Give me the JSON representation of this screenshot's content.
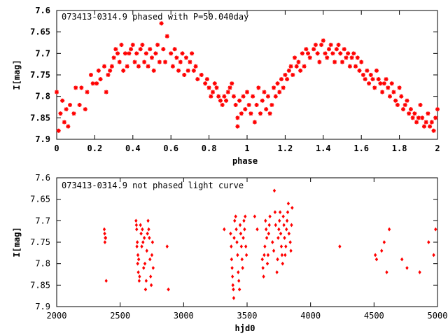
{
  "chart_data": [
    {
      "type": "scatter",
      "title": "073413-0314.9 phased with P=50.040day",
      "xlabel": "phase",
      "ylabel": "I[mag]",
      "xlim": [
        0,
        2
      ],
      "ylim": [
        7.9,
        7.6
      ],
      "y_inverted": true,
      "grid": false,
      "marker_color": "#ff0000",
      "marker_shape": "star",
      "x_ticks": [
        "0",
        "0.2",
        "0.4",
        "0.6",
        "0.8",
        "1",
        "1.2",
        "1.4",
        "1.6",
        "1.8",
        "2"
      ],
      "y_ticks": [
        "7.6",
        "7.65",
        "7.7",
        "7.75",
        "7.8",
        "7.85",
        "7.9"
      ],
      "points": [
        [
          0.0,
          7.79
        ],
        [
          0.01,
          7.88
        ],
        [
          0.02,
          7.84
        ],
        [
          0.03,
          7.81
        ],
        [
          0.04,
          7.86
        ],
        [
          0.05,
          7.83
        ],
        [
          0.06,
          7.87
        ],
        [
          0.07,
          7.82
        ],
        [
          0.09,
          7.84
        ],
        [
          0.1,
          7.78
        ],
        [
          0.12,
          7.82
        ],
        [
          0.13,
          7.78
        ],
        [
          0.15,
          7.83
        ],
        [
          0.16,
          7.79
        ],
        [
          0.18,
          7.75
        ],
        [
          0.19,
          7.77
        ],
        [
          0.21,
          7.77
        ],
        [
          0.22,
          7.74
        ],
        [
          0.23,
          7.76
        ],
        [
          0.25,
          7.73
        ],
        [
          0.26,
          7.79
        ],
        [
          0.27,
          7.75
        ],
        [
          0.28,
          7.74
        ],
        [
          0.29,
          7.73
        ],
        [
          0.3,
          7.71
        ],
        [
          0.31,
          7.69
        ],
        [
          0.32,
          7.7
        ],
        [
          0.33,
          7.72
        ],
        [
          0.34,
          7.68
        ],
        [
          0.35,
          7.74
        ],
        [
          0.36,
          7.7
        ],
        [
          0.37,
          7.73
        ],
        [
          0.38,
          7.7
        ],
        [
          0.39,
          7.69
        ],
        [
          0.4,
          7.68
        ],
        [
          0.41,
          7.72
        ],
        [
          0.42,
          7.7
        ],
        [
          0.43,
          7.73
        ],
        [
          0.44,
          7.69
        ],
        [
          0.45,
          7.68
        ],
        [
          0.46,
          7.72
        ],
        [
          0.47,
          7.7
        ],
        [
          0.48,
          7.73
        ],
        [
          0.49,
          7.69
        ],
        [
          0.5,
          7.71
        ],
        [
          0.51,
          7.74
        ],
        [
          0.52,
          7.7
        ],
        [
          0.53,
          7.68
        ],
        [
          0.54,
          7.72
        ],
        [
          0.55,
          7.63
        ],
        [
          0.56,
          7.69
        ],
        [
          0.57,
          7.72
        ],
        [
          0.58,
          7.66
        ],
        [
          0.6,
          7.7
        ],
        [
          0.61,
          7.73
        ],
        [
          0.62,
          7.69
        ],
        [
          0.63,
          7.71
        ],
        [
          0.64,
          7.74
        ],
        [
          0.65,
          7.72
        ],
        [
          0.66,
          7.7
        ],
        [
          0.67,
          7.75
        ],
        [
          0.68,
          7.71
        ],
        [
          0.69,
          7.74
        ],
        [
          0.7,
          7.72
        ],
        [
          0.71,
          7.7
        ],
        [
          0.72,
          7.74
        ],
        [
          0.73,
          7.73
        ],
        [
          0.74,
          7.76
        ],
        [
          0.76,
          7.75
        ],
        [
          0.78,
          7.77
        ],
        [
          0.79,
          7.76
        ],
        [
          0.8,
          7.78
        ],
        [
          0.81,
          7.8
        ],
        [
          0.82,
          7.79
        ],
        [
          0.83,
          7.77
        ],
        [
          0.84,
          7.78
        ],
        [
          0.85,
          7.8
        ],
        [
          0.86,
          7.81
        ],
        [
          0.87,
          7.82
        ],
        [
          0.88,
          7.8
        ],
        [
          0.89,
          7.81
        ],
        [
          0.9,
          7.79
        ],
        [
          0.91,
          7.78
        ],
        [
          0.92,
          7.77
        ],
        [
          0.93,
          7.8
        ],
        [
          0.94,
          7.82
        ],
        [
          0.95,
          7.85
        ],
        [
          0.95,
          7.87
        ],
        [
          0.96,
          7.81
        ],
        [
          0.97,
          7.84
        ],
        [
          0.98,
          7.8
        ],
        [
          0.99,
          7.83
        ],
        [
          1.0,
          7.79
        ],
        [
          1.01,
          7.82
        ],
        [
          1.02,
          7.84
        ],
        [
          1.03,
          7.8
        ],
        [
          1.04,
          7.86
        ],
        [
          1.05,
          7.82
        ],
        [
          1.06,
          7.78
        ],
        [
          1.07,
          7.84
        ],
        [
          1.08,
          7.81
        ],
        [
          1.09,
          7.79
        ],
        [
          1.1,
          7.83
        ],
        [
          1.11,
          7.8
        ],
        [
          1.12,
          7.84
        ],
        [
          1.13,
          7.82
        ],
        [
          1.14,
          7.78
        ],
        [
          1.15,
          7.8
        ],
        [
          1.16,
          7.77
        ],
        [
          1.17,
          7.79
        ],
        [
          1.18,
          7.76
        ],
        [
          1.19,
          7.78
        ],
        [
          1.2,
          7.75
        ],
        [
          1.21,
          7.76
        ],
        [
          1.22,
          7.74
        ],
        [
          1.23,
          7.73
        ],
        [
          1.24,
          7.75
        ],
        [
          1.25,
          7.71
        ],
        [
          1.26,
          7.73
        ],
        [
          1.27,
          7.72
        ],
        [
          1.28,
          7.74
        ],
        [
          1.29,
          7.7
        ],
        [
          1.3,
          7.73
        ],
        [
          1.31,
          7.69
        ],
        [
          1.32,
          7.7
        ],
        [
          1.33,
          7.71
        ],
        [
          1.35,
          7.69
        ],
        [
          1.36,
          7.68
        ],
        [
          1.37,
          7.7
        ],
        [
          1.38,
          7.72
        ],
        [
          1.39,
          7.68
        ],
        [
          1.4,
          7.67
        ],
        [
          1.41,
          7.7
        ],
        [
          1.42,
          7.71
        ],
        [
          1.43,
          7.69
        ],
        [
          1.44,
          7.68
        ],
        [
          1.45,
          7.7
        ],
        [
          1.46,
          7.72
        ],
        [
          1.47,
          7.69
        ],
        [
          1.48,
          7.68
        ],
        [
          1.49,
          7.7
        ],
        [
          1.5,
          7.72
        ],
        [
          1.51,
          7.69
        ],
        [
          1.52,
          7.71
        ],
        [
          1.53,
          7.7
        ],
        [
          1.54,
          7.73
        ],
        [
          1.55,
          7.71
        ],
        [
          1.56,
          7.7
        ],
        [
          1.57,
          7.73
        ],
        [
          1.58,
          7.71
        ],
        [
          1.59,
          7.74
        ],
        [
          1.6,
          7.72
        ],
        [
          1.61,
          7.75
        ],
        [
          1.62,
          7.76
        ],
        [
          1.63,
          7.74
        ],
        [
          1.64,
          7.77
        ],
        [
          1.65,
          7.75
        ],
        [
          1.66,
          7.76
        ],
        [
          1.67,
          7.78
        ],
        [
          1.68,
          7.74
        ],
        [
          1.69,
          7.76
        ],
        [
          1.7,
          7.77
        ],
        [
          1.71,
          7.79
        ],
        [
          1.72,
          7.77
        ],
        [
          1.73,
          7.76
        ],
        [
          1.74,
          7.78
        ],
        [
          1.75,
          7.8
        ],
        [
          1.76,
          7.77
        ],
        [
          1.77,
          7.79
        ],
        [
          1.78,
          7.81
        ],
        [
          1.79,
          7.82
        ],
        [
          1.8,
          7.78
        ],
        [
          1.81,
          7.8
        ],
        [
          1.82,
          7.83
        ],
        [
          1.83,
          7.82
        ],
        [
          1.84,
          7.81
        ],
        [
          1.85,
          7.84
        ],
        [
          1.86,
          7.83
        ],
        [
          1.87,
          7.85
        ],
        [
          1.88,
          7.84
        ],
        [
          1.89,
          7.86
        ],
        [
          1.9,
          7.85
        ],
        [
          1.91,
          7.82
        ],
        [
          1.92,
          7.85
        ],
        [
          1.93,
          7.87
        ],
        [
          1.94,
          7.86
        ],
        [
          1.95,
          7.84
        ],
        [
          1.96,
          7.87
        ],
        [
          1.97,
          7.86
        ],
        [
          1.98,
          7.88
        ],
        [
          1.99,
          7.85
        ],
        [
          2.0,
          7.83
        ]
      ]
    },
    {
      "type": "scatter",
      "title": "073413-0314.9 not phased light curve",
      "xlabel": "hjd0",
      "ylabel": "I[mag]",
      "xlim": [
        2000,
        5000
      ],
      "ylim": [
        7.9,
        7.6
      ],
      "y_inverted": true,
      "grid": false,
      "marker_color": "#ff0000",
      "marker_shape": "diamond",
      "x_ticks": [
        "2000",
        "2500",
        "3000",
        "3500",
        "4000",
        "4500",
        "5000"
      ],
      "y_ticks": [
        "7.6",
        "7.65",
        "7.7",
        "7.75",
        "7.8",
        "7.85",
        "7.9"
      ],
      "points": [
        [
          2375,
          7.72
        ],
        [
          2378,
          7.73
        ],
        [
          2380,
          7.75
        ],
        [
          2383,
          7.74
        ],
        [
          2386,
          7.74
        ],
        [
          2390,
          7.84
        ],
        [
          2625,
          7.7
        ],
        [
          2628,
          7.71
        ],
        [
          2630,
          7.72
        ],
        [
          2632,
          7.76
        ],
        [
          2635,
          7.75
        ],
        [
          2638,
          7.8
        ],
        [
          2640,
          7.78
        ],
        [
          2643,
          7.82
        ],
        [
          2646,
          7.79
        ],
        [
          2650,
          7.84
        ],
        [
          2653,
          7.83
        ],
        [
          2660,
          7.71
        ],
        [
          2665,
          7.73
        ],
        [
          2670,
          7.76
        ],
        [
          2675,
          7.72
        ],
        [
          2680,
          7.75
        ],
        [
          2685,
          7.81
        ],
        [
          2690,
          7.74
        ],
        [
          2695,
          7.8
        ],
        [
          2700,
          7.86
        ],
        [
          2705,
          7.84
        ],
        [
          2710,
          7.77
        ],
        [
          2715,
          7.73
        ],
        [
          2720,
          7.7
        ],
        [
          2725,
          7.72
        ],
        [
          2730,
          7.74
        ],
        [
          2735,
          7.79
        ],
        [
          2740,
          7.83
        ],
        [
          2745,
          7.85
        ],
        [
          2750,
          7.78
        ],
        [
          2755,
          7.75
        ],
        [
          2760,
          7.81
        ],
        [
          2870,
          7.76
        ],
        [
          2880,
          7.86
        ],
        [
          3320,
          7.72
        ],
        [
          3370,
          7.73
        ],
        [
          3375,
          7.76
        ],
        [
          3378,
          7.79
        ],
        [
          3382,
          7.81
        ],
        [
          3385,
          7.83
        ],
        [
          3388,
          7.85
        ],
        [
          3392,
          7.86
        ],
        [
          3395,
          7.88
        ],
        [
          3398,
          7.74
        ],
        [
          3402,
          7.7
        ],
        [
          3410,
          7.69
        ],
        [
          3415,
          7.72
        ],
        [
          3420,
          7.75
        ],
        [
          3425,
          7.78
        ],
        [
          3430,
          7.82
        ],
        [
          3435,
          7.84
        ],
        [
          3440,
          7.86
        ],
        [
          3445,
          7.71
        ],
        [
          3450,
          7.73
        ],
        [
          3455,
          7.76
        ],
        [
          3460,
          7.79
        ],
        [
          3465,
          7.81
        ],
        [
          3470,
          7.74
        ],
        [
          3475,
          7.7
        ],
        [
          3480,
          7.72
        ],
        [
          3485,
          7.69
        ],
        [
          3490,
          7.76
        ],
        [
          3495,
          7.78
        ],
        [
          3560,
          7.69
        ],
        [
          3580,
          7.72
        ],
        [
          3620,
          7.79
        ],
        [
          3625,
          7.81
        ],
        [
          3630,
          7.83
        ],
        [
          3635,
          7.78
        ],
        [
          3640,
          7.76
        ],
        [
          3645,
          7.7
        ],
        [
          3650,
          7.72
        ],
        [
          3655,
          7.74
        ],
        [
          3660,
          7.8
        ],
        [
          3665,
          7.78
        ],
        [
          3670,
          7.73
        ],
        [
          3675,
          7.71
        ],
        [
          3680,
          7.69
        ],
        [
          3700,
          7.75
        ],
        [
          3710,
          7.77
        ],
        [
          3715,
          7.63
        ],
        [
          3720,
          7.68
        ],
        [
          3725,
          7.71
        ],
        [
          3735,
          7.82
        ],
        [
          3740,
          7.79
        ],
        [
          3745,
          7.74
        ],
        [
          3750,
          7.72
        ],
        [
          3755,
          7.7
        ],
        [
          3760,
          7.68
        ],
        [
          3765,
          7.73
        ],
        [
          3770,
          7.76
        ],
        [
          3775,
          7.78
        ],
        [
          3780,
          7.8
        ],
        [
          3785,
          7.69
        ],
        [
          3790,
          7.71
        ],
        [
          3795,
          7.74
        ],
        [
          3800,
          7.78
        ],
        [
          3805,
          7.76
        ],
        [
          3810,
          7.72
        ],
        [
          3815,
          7.7
        ],
        [
          3820,
          7.68
        ],
        [
          3825,
          7.66
        ],
        [
          3830,
          7.73
        ],
        [
          3840,
          7.75
        ],
        [
          3845,
          7.77
        ],
        [
          3850,
          7.71
        ],
        [
          3855,
          7.67
        ],
        [
          4230,
          7.76
        ],
        [
          4510,
          7.78
        ],
        [
          4520,
          7.79
        ],
        [
          4560,
          7.77
        ],
        [
          4580,
          7.75
        ],
        [
          4600,
          7.82
        ],
        [
          4620,
          7.72
        ],
        [
          4720,
          7.79
        ],
        [
          4760,
          7.81
        ],
        [
          4860,
          7.82
        ],
        [
          4930,
          7.75
        ],
        [
          4970,
          7.78
        ],
        [
          4985,
          7.72
        ]
      ]
    }
  ]
}
